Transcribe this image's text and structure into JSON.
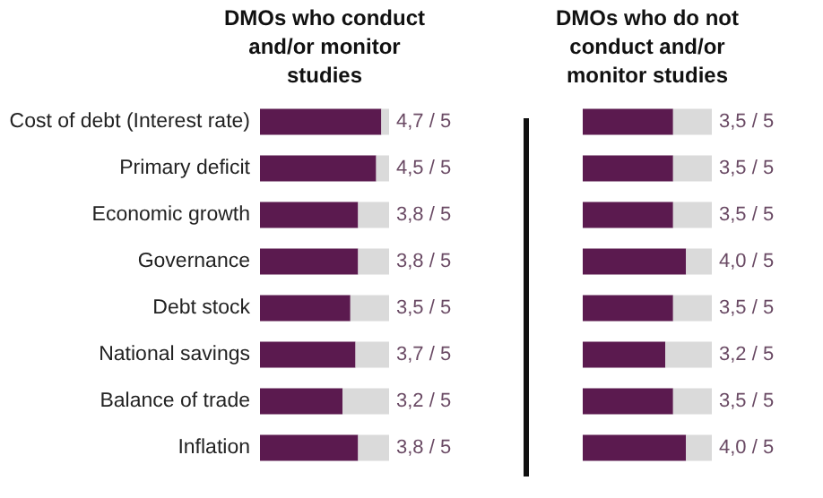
{
  "chart_data": [
    {
      "type": "bar",
      "orientation": "horizontal",
      "stacked": true,
      "title": "DMOs who conduct and/or monitor studies",
      "categories": [
        "Cost of debt (Interest rate)",
        "Primary deficit",
        "Economic growth",
        "Governance",
        "Debt stock",
        "National savings",
        "Balance of trade",
        "Inflation"
      ],
      "xlim": [
        0,
        5
      ],
      "tick_labels": "y",
      "series": [
        {
          "color": "#5b1a4f",
          "values": [
            4.7,
            4.5,
            3.8,
            3.8,
            3.5,
            3.7,
            3.2,
            3.8
          ],
          "value_labels": [
            "4,7 / 5",
            "4,5 / 5",
            "3,8 / 5",
            "3,8 / 5",
            "3,5 / 5",
            "3,7 / 5",
            "3,2 / 5",
            "3,8 / 5"
          ]
        },
        {
          "color": "#dadada",
          "values": [
            0.3,
            0.5,
            1.2,
            1.2,
            1.5,
            1.3,
            1.8,
            1.2
          ]
        }
      ]
    },
    {
      "type": "bar",
      "orientation": "horizontal",
      "stacked": true,
      "title": "DMOs who do not conduct and/or monitor studies",
      "xlim": [
        0,
        5
      ],
      "tick_labels": false,
      "series": [
        {
          "color": "#5b1a4f",
          "values": [
            3.5,
            3.5,
            3.5,
            4.0,
            3.5,
            3.2,
            3.5,
            4.0
          ],
          "value_labels": [
            "3,5 / 5",
            "3,5 / 5",
            "3,5 / 5",
            "4,0 / 5",
            "3,5 / 5",
            "3,2 / 5",
            "3,5 / 5",
            "4,0 / 5"
          ]
        },
        {
          "color": "#dadada",
          "values": [
            1.5,
            1.5,
            1.5,
            1.0,
            1.5,
            1.8,
            1.5,
            1.0
          ]
        }
      ]
    }
  ]
}
